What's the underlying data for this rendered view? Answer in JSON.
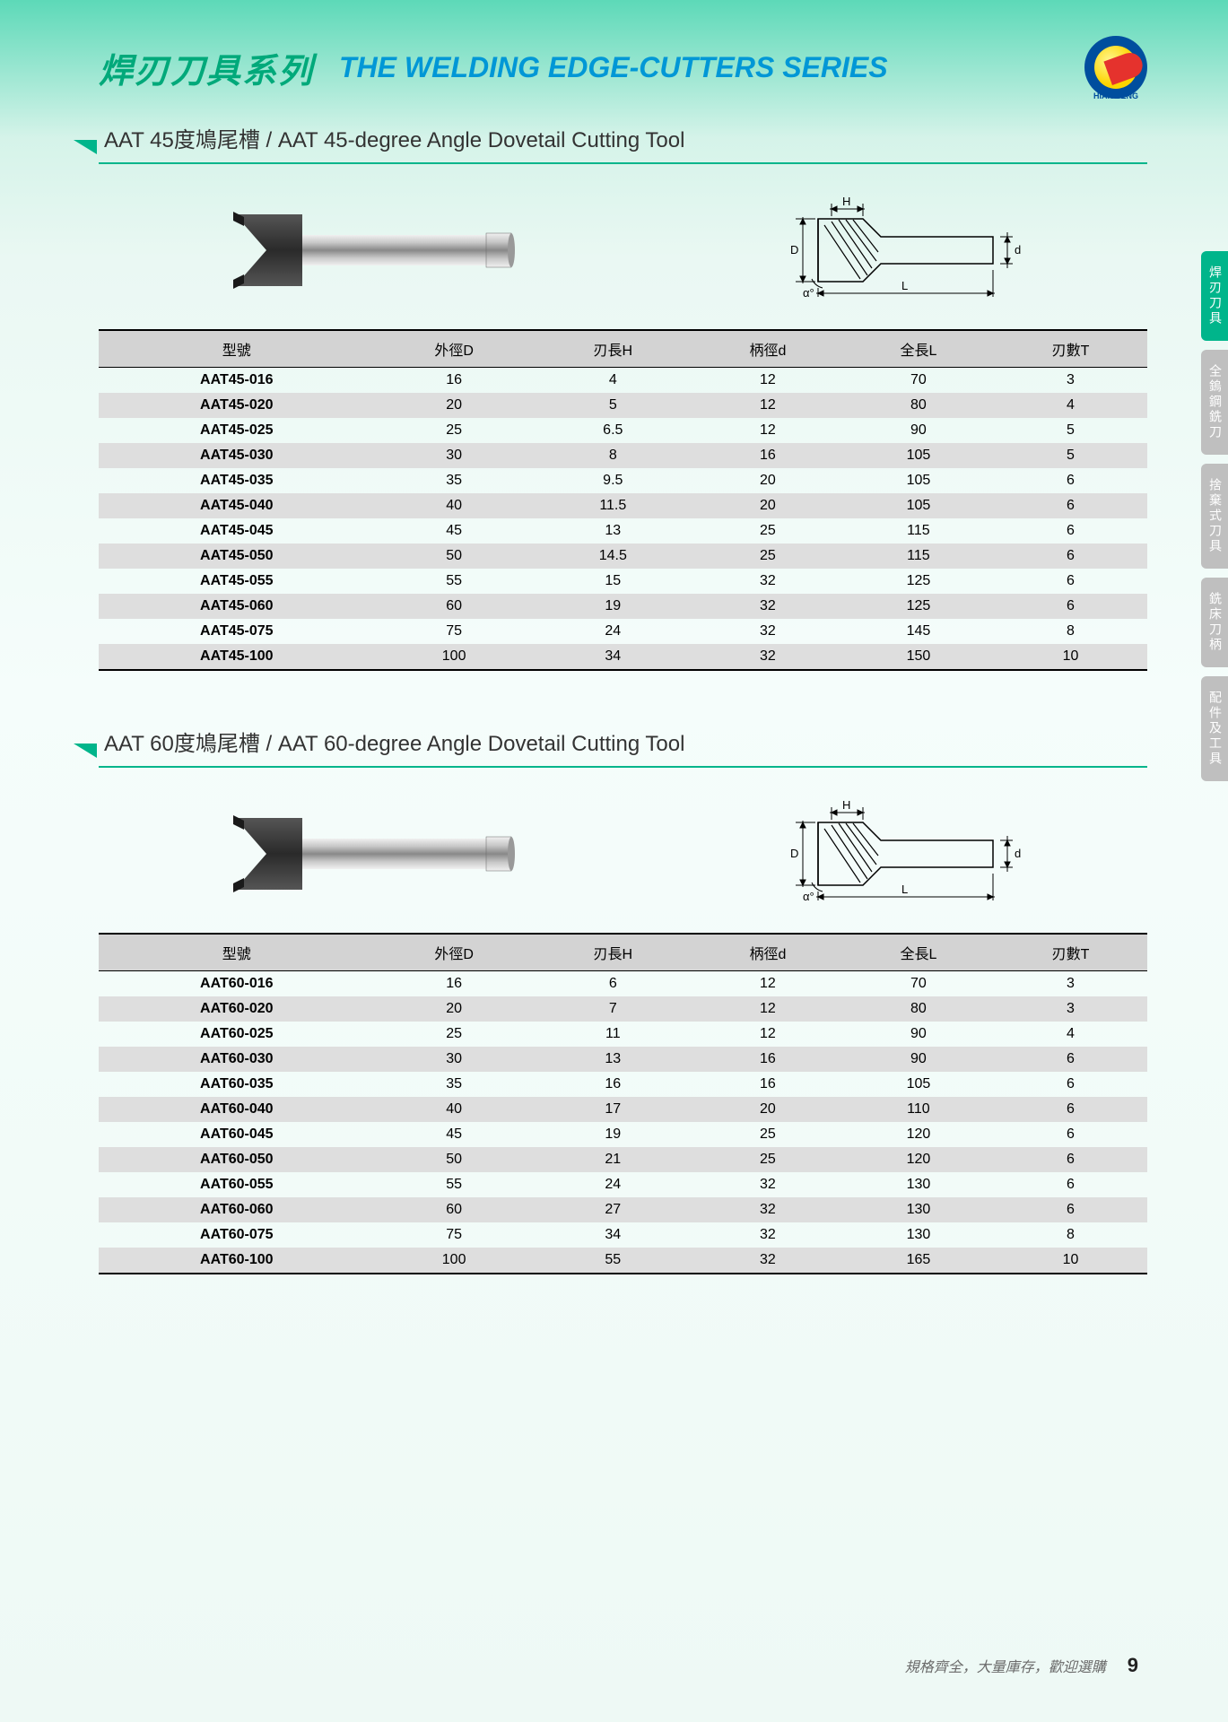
{
  "header": {
    "title_cn": "焊刃刀具系列",
    "title_en": "THE WELDING EDGE-CUTTERS SERIES",
    "logo_text": "HIAN SENG"
  },
  "side_tabs": [
    {
      "label": "焊刃刀具",
      "active": true
    },
    {
      "label": "全鎢鋼銑刀",
      "active": false
    },
    {
      "label": "捨棄式刀具",
      "active": false
    },
    {
      "label": "銑床刀柄",
      "active": false
    },
    {
      "label": "配件及工具",
      "active": false
    }
  ],
  "sections": [
    {
      "title": "AAT  45度鳩尾槽  /  AAT 45-degree Angle Dovetail Cutting Tool",
      "diagram_labels": {
        "H": "H",
        "D": "D",
        "d": "d",
        "L": "L",
        "alpha": "α°"
      },
      "columns": [
        "型號",
        "外徑D",
        "刃長H",
        "柄徑d",
        "全長L",
        "刃數T"
      ],
      "rows": [
        [
          "AAT45-016",
          "16",
          "4",
          "12",
          "70",
          "3"
        ],
        [
          "AAT45-020",
          "20",
          "5",
          "12",
          "80",
          "4"
        ],
        [
          "AAT45-025",
          "25",
          "6.5",
          "12",
          "90",
          "5"
        ],
        [
          "AAT45-030",
          "30",
          "8",
          "16",
          "105",
          "5"
        ],
        [
          "AAT45-035",
          "35",
          "9.5",
          "20",
          "105",
          "6"
        ],
        [
          "AAT45-040",
          "40",
          "11.5",
          "20",
          "105",
          "6"
        ],
        [
          "AAT45-045",
          "45",
          "13",
          "25",
          "115",
          "6"
        ],
        [
          "AAT45-050",
          "50",
          "14.5",
          "25",
          "115",
          "6"
        ],
        [
          "AAT45-055",
          "55",
          "15",
          "32",
          "125",
          "6"
        ],
        [
          "AAT45-060",
          "60",
          "19",
          "32",
          "125",
          "6"
        ],
        [
          "AAT45-075",
          "75",
          "24",
          "32",
          "145",
          "8"
        ],
        [
          "AAT45-100",
          "100",
          "34",
          "32",
          "150",
          "10"
        ]
      ]
    },
    {
      "title": "AAT  60度鳩尾槽  /  AAT 60-degree Angle Dovetail Cutting Tool",
      "diagram_labels": {
        "H": "H",
        "D": "D",
        "d": "d",
        "L": "L",
        "alpha": "α°"
      },
      "columns": [
        "型號",
        "外徑D",
        "刃長H",
        "柄徑d",
        "全長L",
        "刃數T"
      ],
      "rows": [
        [
          "AAT60-016",
          "16",
          "6",
          "12",
          "70",
          "3"
        ],
        [
          "AAT60-020",
          "20",
          "7",
          "12",
          "80",
          "3"
        ],
        [
          "AAT60-025",
          "25",
          "11",
          "12",
          "90",
          "4"
        ],
        [
          "AAT60-030",
          "30",
          "13",
          "16",
          "90",
          "6"
        ],
        [
          "AAT60-035",
          "35",
          "16",
          "16",
          "105",
          "6"
        ],
        [
          "AAT60-040",
          "40",
          "17",
          "20",
          "110",
          "6"
        ],
        [
          "AAT60-045",
          "45",
          "19",
          "25",
          "120",
          "6"
        ],
        [
          "AAT60-050",
          "50",
          "21",
          "25",
          "120",
          "6"
        ],
        [
          "AAT60-055",
          "55",
          "24",
          "32",
          "130",
          "6"
        ],
        [
          "AAT60-060",
          "60",
          "27",
          "32",
          "130",
          "6"
        ],
        [
          "AAT60-075",
          "75",
          "34",
          "32",
          "130",
          "8"
        ],
        [
          "AAT60-100",
          "100",
          "55",
          "32",
          "165",
          "10"
        ]
      ]
    }
  ],
  "footer": {
    "text": "規格齊全，大量庫存，歡迎選購",
    "page_number": "9"
  },
  "colors": {
    "accent_green": "#00b58b",
    "title_green": "#00a97a",
    "title_blue": "#0097d6",
    "header_grey": "#d3d3d3",
    "row_grey": "#dedede",
    "tab_grey": "#bfbfbf"
  }
}
